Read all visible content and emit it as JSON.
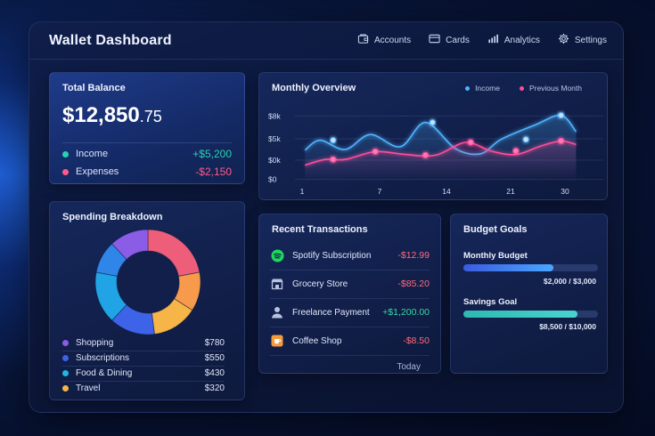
{
  "app": {
    "title": "Wallet Dashboard"
  },
  "nav": [
    {
      "label": "Accounts",
      "icon": "wallet-icon"
    },
    {
      "label": "Cards",
      "icon": "card-icon"
    },
    {
      "label": "Analytics",
      "icon": "bar-chart-icon"
    },
    {
      "label": "Settings",
      "icon": "gear-icon"
    }
  ],
  "balance": {
    "title": "Total Balance",
    "amount_main": "$12,850",
    "amount_cents": ".75",
    "income": {
      "label": "Income",
      "value": "+$5,200",
      "color": "#2ad1b0"
    },
    "expenses": {
      "label": "Expenses",
      "value": "-$2,150",
      "color": "#ff5a8a"
    }
  },
  "overview": {
    "title": "Monthly Overview",
    "legend": {
      "income": "Income",
      "previous": "Previous Month"
    },
    "colors": {
      "income": "#4fb3ff",
      "previous": "#ff4d9a"
    }
  },
  "chart_data": {
    "type": "line",
    "title": "Monthly Overview",
    "x_ticks": [
      "1",
      "7",
      "14",
      "21",
      "30"
    ],
    "y_ticks": [
      "$8k",
      "$5k",
      "$0k",
      "$0"
    ],
    "series": [
      {
        "name": "Income",
        "x": [
          1,
          2.5,
          5,
          7.5,
          10.5,
          13,
          16,
          18.5,
          20.5,
          24,
          26.5,
          28
        ],
        "values": [
          4.4,
          5.8,
          4.5,
          6.6,
          4.9,
          8.3,
          4.6,
          3.9,
          5.9,
          8.0,
          9.3,
          7.0
        ],
        "markers": [
          [
            3.8,
            5.8
          ],
          [
            13.7,
            8.3
          ],
          [
            23,
            5.9
          ],
          [
            26.5,
            9.3
          ]
        ]
      },
      {
        "name": "Previous Month",
        "x": [
          1,
          3,
          5,
          8,
          11,
          14,
          17,
          19.5,
          22,
          24.5,
          26.5,
          28
        ],
        "values": [
          2.3,
          3.1,
          3.1,
          4.2,
          3.8,
          3.7,
          5.5,
          4.3,
          3.8,
          5.0,
          5.7,
          5.2
        ],
        "markers": [
          [
            3.8,
            3.1
          ],
          [
            8,
            4.2
          ],
          [
            13,
            3.7
          ],
          [
            17.5,
            5.5
          ],
          [
            22,
            4.3
          ],
          [
            26.5,
            5.7
          ]
        ]
      }
    ]
  },
  "spending": {
    "title": "Spending Breakdown",
    "items": [
      {
        "label": "Shopping",
        "value": "$780",
        "color": "#8b5ce6"
      },
      {
        "label": "Subscriptions",
        "value": "$550",
        "color": "#3d63e8"
      },
      {
        "label": "Food & Dining",
        "value": "$430",
        "color": "#21b6e0"
      },
      {
        "label": "Travel",
        "value": "$320",
        "color": "#f7b548"
      }
    ],
    "donut": [
      {
        "share": 0.22,
        "color": "#ee5d7a"
      },
      {
        "share": 0.12,
        "color": "#f79a4c"
      },
      {
        "share": 0.14,
        "color": "#f7b548"
      },
      {
        "share": 0.14,
        "color": "#3d63e8"
      },
      {
        "share": 0.16,
        "color": "#21a4e6"
      },
      {
        "share": 0.1,
        "color": "#2f86e8"
      },
      {
        "share": 0.12,
        "color": "#8b5ce6"
      }
    ]
  },
  "transactions": {
    "title": "Recent Transactions",
    "items": [
      {
        "label": "Spotify Subscription",
        "value": "-$12.99",
        "color": "#ff6b7a",
        "icon": "spotify-icon"
      },
      {
        "label": "Grocery Store",
        "value": "-$85.20",
        "color": "#ff6b7a",
        "icon": "store-icon"
      },
      {
        "label": "Freelance Payment",
        "value": "+$1,200.00",
        "color": "#36d9a6",
        "icon": "person-icon"
      },
      {
        "label": "Coffee Shop",
        "value": "-$8.50",
        "color": "#ff6b7a",
        "icon": "coffee-icon"
      }
    ],
    "footer": "Today"
  },
  "budget": {
    "title": "Budget Goals",
    "goals": [
      {
        "label": "Monthly Budget",
        "amount": "$2,000 / $3,000",
        "progress": 0.67,
        "color": "linear-gradient(90deg,#3a5ce0,#4aa6ff)"
      },
      {
        "label": "Savings Goal",
        "amount": "$8,500 / $10,000",
        "progress": 0.85,
        "color": "linear-gradient(90deg,#2fb8b0,#4ad4d0)"
      }
    ]
  }
}
